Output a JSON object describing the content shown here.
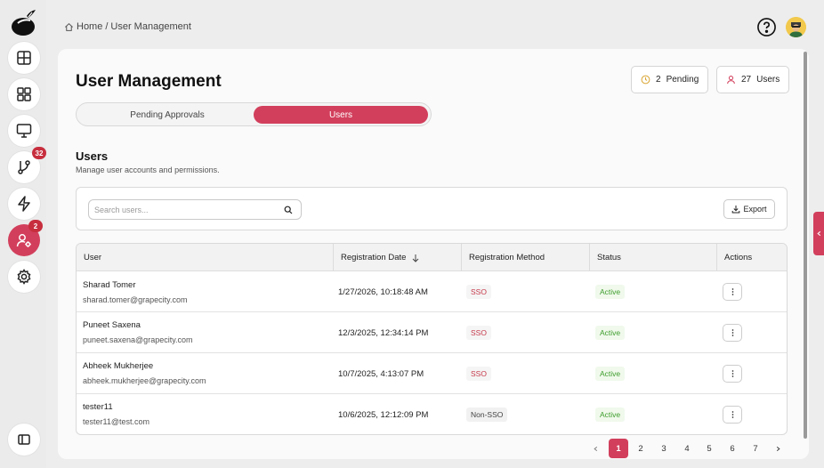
{
  "breadcrumb": {
    "home": "Home",
    "separator": "/",
    "current": "User Management"
  },
  "sidebar": {
    "items": [
      {
        "name": "dashboard",
        "icon": "layout-panels-icon"
      },
      {
        "name": "apps",
        "icon": "grid-icon"
      },
      {
        "name": "monitor",
        "icon": "monitor-icon"
      },
      {
        "name": "workflows",
        "icon": "git-branch-icon",
        "badge": "32"
      },
      {
        "name": "automation",
        "icon": "lightning-icon"
      },
      {
        "name": "user-management",
        "icon": "user-gear-icon",
        "badge": "2",
        "active": true
      },
      {
        "name": "settings",
        "icon": "gear-icon"
      }
    ],
    "collapse_icon": "sidebar-panel-icon"
  },
  "header": {
    "help_icon": "question-circle-icon"
  },
  "page": {
    "title": "User Management",
    "pending_count": "2",
    "pending_label": "Pending",
    "users_count": "27",
    "users_label": "Users"
  },
  "tabs": [
    {
      "label": "Pending Approvals",
      "selected": false
    },
    {
      "label": "Users",
      "selected": true
    }
  ],
  "section": {
    "title": "Users",
    "subtitle": "Manage user accounts and permissions."
  },
  "toolbar": {
    "search_placeholder": "Search users...",
    "export_label": "Export"
  },
  "table": {
    "columns": [
      "User",
      "Registration Date",
      "Registration Method",
      "Status",
      "Actions"
    ],
    "rows": [
      {
        "name": "Sharad Tomer",
        "email": "sharad.tomer@grapecity.com",
        "date": "1/27/2026, 10:18:48 AM",
        "method": "SSO",
        "status": "Active"
      },
      {
        "name": "Puneet Saxena",
        "email": "puneet.saxena@grapecity.com",
        "date": "12/3/2025, 12:34:14 PM",
        "method": "SSO",
        "status": "Active"
      },
      {
        "name": "Abheek Mukherjee",
        "email": "abheek.mukherjee@grapecity.com",
        "date": "10/7/2025, 4:13:07 PM",
        "method": "SSO",
        "status": "Active"
      },
      {
        "name": "tester11",
        "email": "tester11@test.com",
        "date": "10/6/2025, 12:12:09 PM",
        "method": "Non-SSO",
        "status": "Active"
      }
    ]
  },
  "pagination": {
    "pages": [
      "1",
      "2",
      "3",
      "4",
      "5",
      "6",
      "7"
    ],
    "current": "1"
  },
  "colors": {
    "accent": "#d23f5c",
    "badge": "#c72e3e",
    "status_active": "#3f9e2e",
    "sso_tag": "#c5384a"
  }
}
